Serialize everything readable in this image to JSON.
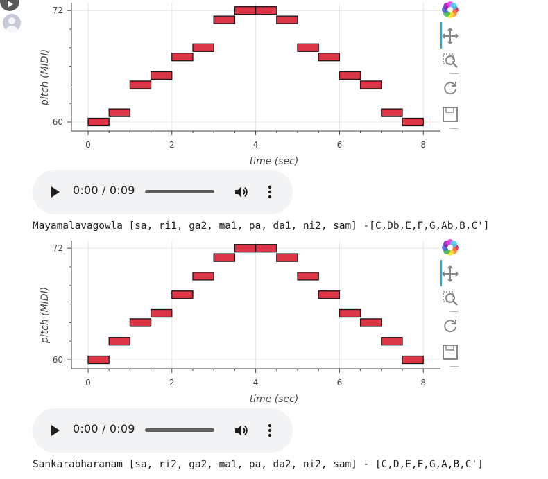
{
  "colors": {
    "note_fill": "#dc3545",
    "note_stroke": "#1a1a1a",
    "grid": "#e5e5e5",
    "axis": "#444444",
    "audio_bg": "#f1f3f4",
    "active_tool": "#26aae1"
  },
  "toolbar": {
    "icons": [
      "bokeh-logo-icon",
      "pan-icon",
      "box-zoom-icon",
      "reset-icon",
      "save-icon"
    ]
  },
  "plots": [
    {
      "audio": {
        "time": "0:00 / 0:09"
      },
      "caption": "Mayamalavagowla [sa, ri1, ga2, ma1, pa, da1, ni2, sam] -[C,Db,E,F,G,Ab,B,C']"
    },
    {
      "audio": {
        "time": "0:00 / 0:09"
      },
      "caption": "Sankarabharanam [sa, ri2, ga2, ma1, pa, da2, ni2, sam] - [C,D,E,F,G,A,B,C']"
    }
  ],
  "chart_data": [
    {
      "type": "bar",
      "xlabel": "time (sec)",
      "ylabel": "pitch (MIDI)",
      "xlim": [
        -0.4,
        8.4
      ],
      "ylim": [
        59.3,
        72.8
      ],
      "xticks": [
        0,
        2,
        4,
        6,
        8
      ],
      "yticks": [
        60,
        72
      ],
      "grid": true,
      "note_duration": 0.5,
      "notes": [
        {
          "start": 0.0,
          "pitch": 60
        },
        {
          "start": 0.5,
          "pitch": 61
        },
        {
          "start": 1.0,
          "pitch": 64
        },
        {
          "start": 1.5,
          "pitch": 65
        },
        {
          "start": 2.0,
          "pitch": 67
        },
        {
          "start": 2.5,
          "pitch": 68
        },
        {
          "start": 3.0,
          "pitch": 71
        },
        {
          "start": 3.5,
          "pitch": 72
        },
        {
          "start": 4.0,
          "pitch": 72
        },
        {
          "start": 4.5,
          "pitch": 71
        },
        {
          "start": 5.0,
          "pitch": 68
        },
        {
          "start": 5.5,
          "pitch": 67
        },
        {
          "start": 6.0,
          "pitch": 65
        },
        {
          "start": 6.5,
          "pitch": 64
        },
        {
          "start": 7.0,
          "pitch": 61
        },
        {
          "start": 7.5,
          "pitch": 60
        }
      ]
    },
    {
      "type": "bar",
      "xlabel": "time (sec)",
      "ylabel": "pitch (MIDI)",
      "xlim": [
        -0.4,
        8.4
      ],
      "ylim": [
        59.3,
        72.8
      ],
      "xticks": [
        0,
        2,
        4,
        6,
        8
      ],
      "yticks": [
        60,
        72
      ],
      "grid": true,
      "note_duration": 0.5,
      "notes": [
        {
          "start": 0.0,
          "pitch": 60
        },
        {
          "start": 0.5,
          "pitch": 62
        },
        {
          "start": 1.0,
          "pitch": 64
        },
        {
          "start": 1.5,
          "pitch": 65
        },
        {
          "start": 2.0,
          "pitch": 67
        },
        {
          "start": 2.5,
          "pitch": 69
        },
        {
          "start": 3.0,
          "pitch": 71
        },
        {
          "start": 3.5,
          "pitch": 72
        },
        {
          "start": 4.0,
          "pitch": 72
        },
        {
          "start": 4.5,
          "pitch": 71
        },
        {
          "start": 5.0,
          "pitch": 69
        },
        {
          "start": 5.5,
          "pitch": 67
        },
        {
          "start": 6.0,
          "pitch": 65
        },
        {
          "start": 6.5,
          "pitch": 64
        },
        {
          "start": 7.0,
          "pitch": 62
        },
        {
          "start": 7.5,
          "pitch": 60
        }
      ]
    }
  ]
}
